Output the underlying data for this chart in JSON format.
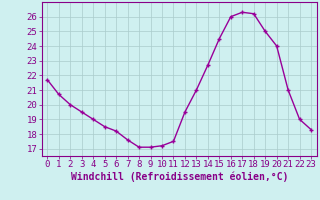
{
  "x": [
    0,
    1,
    2,
    3,
    4,
    5,
    6,
    7,
    8,
    9,
    10,
    11,
    12,
    13,
    14,
    15,
    16,
    17,
    18,
    19,
    20,
    21,
    22,
    23
  ],
  "y": [
    21.7,
    20.7,
    20.0,
    19.5,
    19.0,
    18.5,
    18.2,
    17.6,
    17.1,
    17.1,
    17.2,
    17.5,
    19.5,
    21.0,
    22.7,
    24.5,
    26.0,
    26.3,
    26.2,
    25.0,
    24.0,
    21.0,
    19.0,
    18.3
  ],
  "line_color": "#990099",
  "marker": "+",
  "marker_size": 3,
  "bg_color": "#cff0f0",
  "grid_color": "#aacccc",
  "xlabel": "Windchill (Refroidissement éolien,°C)",
  "ylim": [
    16.5,
    27
  ],
  "xlim": [
    -0.5,
    23.5
  ],
  "yticks": [
    17,
    18,
    19,
    20,
    21,
    22,
    23,
    24,
    25,
    26
  ],
  "xticks": [
    0,
    1,
    2,
    3,
    4,
    5,
    6,
    7,
    8,
    9,
    10,
    11,
    12,
    13,
    14,
    15,
    16,
    17,
    18,
    19,
    20,
    21,
    22,
    23
  ],
  "xlabel_fontsize": 7,
  "tick_fontsize": 6.5,
  "axis_color": "#880088",
  "spine_color": "#880088",
  "linewidth": 1.0
}
